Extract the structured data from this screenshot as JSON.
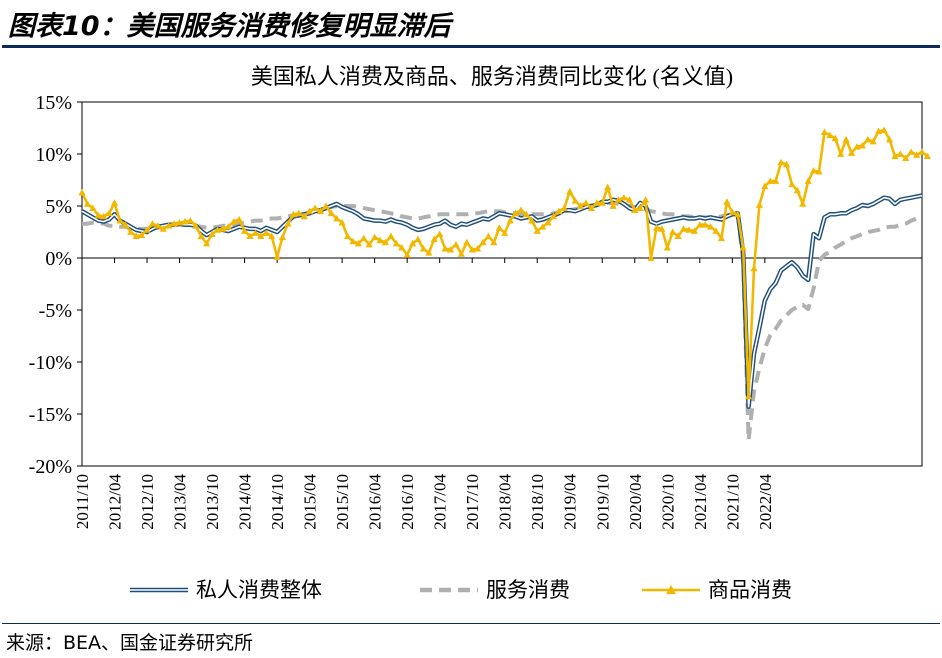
{
  "figure": {
    "title": "图表10：美国服务消费修复明显滞后",
    "source": "来源：BEA、国金证券研究所"
  },
  "chart_data": {
    "type": "line",
    "title": "美国私人消费及商品、服务消费同比变化 (名义值)",
    "xlabel": "",
    "ylabel": "",
    "ylim": [
      -20,
      15
    ],
    "y_ticks": [
      "15%",
      "10%",
      "5%",
      "0%",
      "-5%",
      "-10%",
      "-15%",
      "-20%"
    ],
    "y_tick_values": [
      15,
      10,
      5,
      0,
      -5,
      -10,
      -15,
      -20
    ],
    "x_start": "2011/10",
    "x_tick_labels": [
      "2011/10",
      "2012/04",
      "2012/10",
      "2013/04",
      "2013/10",
      "2014/04",
      "2014/10",
      "2015/04",
      "2015/10",
      "2016/04",
      "2016/10",
      "2017/04",
      "2017/10",
      "2018/04",
      "2018/10",
      "2019/04",
      "2019/10",
      "2020/04",
      "2020/10",
      "2021/04",
      "2021/10",
      "2022/04"
    ],
    "legend_position": "bottom",
    "grid": false,
    "colors": {
      "total": "#1f4e79",
      "services": "#b0b0b0",
      "goods": "#f2b800"
    },
    "series": [
      {
        "name": "私人消费整体",
        "key": "total",
        "style": "double-line",
        "values": [
          4.5,
          4.2,
          3.9,
          3.6,
          3.5,
          3.7,
          4.2,
          3.6,
          3.3,
          3.0,
          2.7,
          2.6,
          2.5,
          2.8,
          3.0,
          3.1,
          3.2,
          3.2,
          3.3,
          3.2,
          3.2,
          3.1,
          2.6,
          2.2,
          2.5,
          2.8,
          2.7,
          2.6,
          2.8,
          3.0,
          2.9,
          2.8,
          2.8,
          2.6,
          2.9,
          2.7,
          2.5,
          3.0,
          3.5,
          4.0,
          4.1,
          4.2,
          4.3,
          4.5,
          4.6,
          4.8,
          5.0,
          5.2,
          4.9,
          4.7,
          4.5,
          4.2,
          3.8,
          3.7,
          3.6,
          3.6,
          3.5,
          3.7,
          3.5,
          3.4,
          3.2,
          2.9,
          2.7,
          2.8,
          3.0,
          3.2,
          3.3,
          3.6,
          3.2,
          3.0,
          3.3,
          3.2,
          3.4,
          3.6,
          3.8,
          3.7,
          4.0,
          4.3,
          4.2,
          4.1,
          4.0,
          3.8,
          3.9,
          4.0,
          3.6,
          3.7,
          3.9,
          4.1,
          4.3,
          4.6,
          4.6,
          4.5,
          4.7,
          4.9,
          5.0,
          5.1,
          5.4,
          5.4,
          5.6,
          5.5,
          5.2,
          4.8,
          4.6,
          5.3,
          5.0,
          3.5,
          3.3,
          3.5,
          3.6,
          3.7,
          3.8,
          3.9,
          3.8,
          3.8,
          3.9,
          3.8,
          3.9,
          3.8,
          3.7,
          4.0,
          4.2,
          4.3,
          0.5,
          -14.3,
          -9.2,
          -6.7,
          -4.1,
          -3.0,
          -2.4,
          -1.2,
          -0.8,
          -0.4,
          -0.9,
          -1.7,
          -2.1,
          2.3,
          1.9,
          3.9,
          4.2,
          4.2,
          4.3,
          4.3,
          4.6,
          4.8,
          5.1,
          5.0,
          5.2,
          5.5,
          5.8,
          5.7,
          5.2,
          5.6,
          5.7,
          5.8,
          5.9,
          6.0
        ]
      },
      {
        "name": "服务消费",
        "key": "services",
        "style": "dashed",
        "values": [
          3.3,
          3.3,
          3.4,
          3.4,
          3.3,
          3.1,
          3.1,
          3.0,
          3.0,
          2.9,
          2.8,
          2.8,
          2.8,
          2.8,
          2.9,
          3.0,
          3.1,
          3.1,
          3.2,
          3.2,
          3.1,
          3.1,
          3.0,
          2.9,
          2.9,
          3.0,
          3.1,
          3.1,
          3.2,
          3.3,
          3.4,
          3.5,
          3.6,
          3.6,
          3.7,
          3.8,
          3.8,
          3.9,
          4.0,
          4.1,
          4.2,
          4.3,
          4.4,
          4.6,
          4.7,
          4.8,
          4.9,
          5.0,
          5.0,
          5.0,
          5.0,
          4.9,
          4.8,
          4.7,
          4.6,
          4.5,
          4.4,
          4.3,
          4.2,
          4.0,
          3.9,
          3.8,
          3.8,
          3.9,
          4.0,
          4.1,
          4.2,
          4.2,
          4.2,
          4.2,
          4.2,
          4.2,
          4.3,
          4.3,
          4.4,
          4.5,
          4.5,
          4.5,
          4.4,
          4.4,
          4.3,
          4.2,
          4.2,
          4.2,
          4.2,
          4.2,
          4.2,
          4.3,
          4.4,
          4.5,
          4.6,
          4.7,
          4.8,
          4.9,
          5.0,
          5.1,
          5.2,
          5.3,
          5.3,
          5.2,
          5.1,
          5.0,
          4.9,
          4.8,
          4.7,
          4.5,
          4.4,
          4.3,
          4.2,
          4.2,
          4.1,
          4.0,
          4.0,
          3.9,
          3.9,
          3.9,
          3.9,
          3.9,
          4.0,
          4.1,
          4.2,
          4.3,
          -0.5,
          -17.5,
          -12.8,
          -10.6,
          -8.7,
          -7.4,
          -6.8,
          -6.0,
          -5.5,
          -5.0,
          -4.7,
          -4.5,
          -4.9,
          -2.9,
          -0.3,
          0.3,
          0.6,
          1.0,
          1.3,
          1.6,
          1.9,
          2.1,
          2.3,
          2.5,
          2.6,
          2.7,
          2.9,
          3.0,
          3.0,
          3.2,
          3.3,
          3.6,
          3.8,
          4.0
        ]
      },
      {
        "name": "商品消费",
        "key": "goods",
        "style": "line-triangle-markers",
        "values": [
          6.3,
          5.2,
          4.8,
          4.1,
          4.0,
          4.3,
          5.3,
          3.6,
          3.2,
          2.5,
          2.1,
          2.2,
          2.7,
          3.3,
          3.1,
          2.8,
          3.1,
          3.3,
          3.4,
          3.5,
          3.6,
          3.1,
          2.1,
          1.4,
          2.3,
          2.7,
          2.8,
          3.0,
          3.5,
          3.7,
          2.6,
          2.1,
          2.4,
          2.1,
          2.4,
          2.1,
          0.1,
          2.0,
          3.3,
          4.2,
          4.3,
          4.0,
          4.5,
          4.8,
          4.5,
          5.0,
          4.3,
          3.8,
          3.4,
          2.1,
          1.6,
          1.4,
          1.9,
          1.3,
          2.0,
          1.7,
          1.5,
          2.1,
          1.4,
          1.0,
          0.3,
          1.4,
          1.8,
          0.9,
          0.5,
          1.8,
          2.3,
          0.9,
          0.8,
          1.3,
          0.4,
          1.5,
          0.8,
          0.9,
          1.5,
          2.1,
          1.5,
          2.9,
          2.4,
          3.6,
          4.3,
          4.6,
          4.2,
          3.6,
          2.6,
          3.0,
          3.4,
          4.0,
          4.5,
          4.8,
          6.4,
          5.5,
          5.0,
          5.3,
          4.8,
          5.3,
          5.3,
          6.8,
          5.0,
          5.6,
          5.8,
          5.6,
          4.6,
          4.8,
          5.6,
          0.0,
          2.9,
          2.8,
          1.0,
          2.5,
          2.1,
          2.8,
          2.7,
          2.6,
          3.2,
          3.2,
          3.0,
          2.6,
          1.9,
          5.4,
          4.4,
          4.2,
          1.0,
          -13.3,
          -1.0,
          5.1,
          6.9,
          7.4,
          7.4,
          9.2,
          9.0,
          7.1,
          6.5,
          5.2,
          7.4,
          8.4,
          8.3,
          12.1,
          11.8,
          11.5,
          10.0,
          11.4,
          10.1,
          10.7,
          10.8,
          11.4,
          11.2,
          12.2,
          12.3,
          11.4,
          9.8,
          10.0,
          9.6,
          10.2,
          9.9,
          10.2,
          9.8
        ]
      }
    ]
  }
}
